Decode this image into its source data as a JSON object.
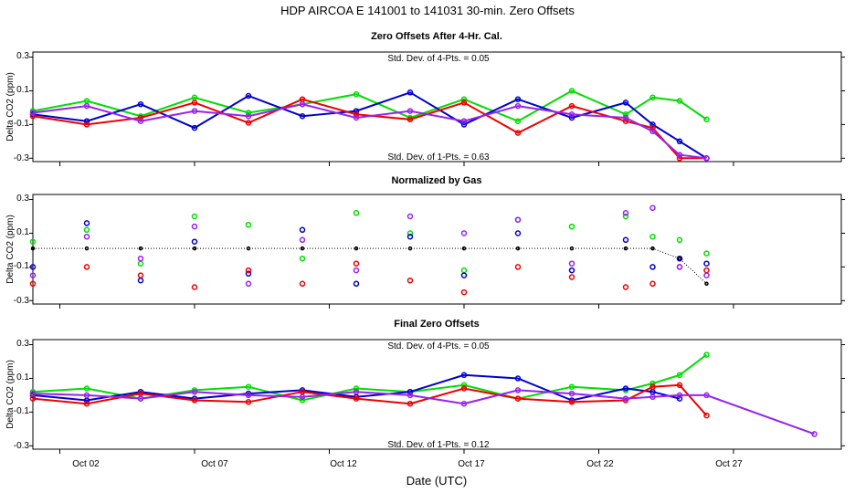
{
  "figure": {
    "title": "HDP   AIRCOA E   141001 to 141031   30-min. Zero Offsets",
    "xlabel": "Date (UTC)",
    "x_ticks": [
      "Oct 02",
      "Oct 07",
      "Oct 12",
      "Oct 17",
      "Oct 22",
      "Oct 27"
    ]
  },
  "colors": {
    "green": "#00dd00",
    "blue": "#0000cc",
    "red": "#ee0000",
    "purple": "#9922ee",
    "black": "#000000"
  },
  "chart_data": [
    {
      "type": "line",
      "title": "Zero Offsets After 4-Hr. Cal.",
      "ylabel": "Delta CO2 (ppm)",
      "yticks": [
        "0.3",
        "0.1",
        "-0.1",
        "-0.3"
      ],
      "ylim": [
        -0.32,
        0.33
      ],
      "xlim": [
        "2014-10-01",
        "2014-10-31"
      ],
      "annotations": [
        "Std. Dev. of 4-Pts. =  0.05",
        "Std. Dev. of 1-Pts. =  0.63"
      ],
      "x": [
        "2014-10-01",
        "2014-10-03",
        "2014-10-05",
        "2014-10-07",
        "2014-10-09",
        "2014-10-11",
        "2014-10-13",
        "2014-10-15",
        "2014-10-17",
        "2014-10-19",
        "2014-10-21",
        "2014-10-23",
        "2014-10-24",
        "2014-10-25",
        "2014-10-26"
      ],
      "series": [
        {
          "values": [
            -0.02,
            0.04,
            -0.05,
            0.06,
            -0.03,
            0.02,
            0.08,
            -0.06,
            0.05,
            -0.08,
            0.1,
            -0.04,
            0.06,
            0.04,
            -0.07
          ]
        },
        {
          "values": [
            -0.04,
            -0.08,
            0.02,
            -0.12,
            0.07,
            -0.05,
            -0.02,
            0.09,
            -0.1,
            0.05,
            -0.06,
            0.03,
            -0.1,
            -0.2,
            -0.3
          ]
        },
        {
          "values": [
            -0.05,
            -0.1,
            -0.06,
            0.03,
            -0.09,
            0.05,
            -0.04,
            -0.07,
            0.03,
            -0.15,
            0.01,
            -0.08,
            -0.12,
            -0.3,
            -0.3
          ]
        },
        {
          "values": [
            -0.03,
            0.01,
            -0.08,
            -0.02,
            -0.05,
            0.02,
            -0.06,
            -0.02,
            -0.08,
            0.01,
            -0.04,
            -0.06,
            -0.14,
            -0.28,
            -0.3
          ]
        }
      ]
    },
    {
      "type": "scatter",
      "title": "Normalized by Gas",
      "ylabel": "Delta CO2 (ppm)",
      "yticks": [
        "0.3",
        "0.1",
        "-0.1",
        "-0.3"
      ],
      "ylim": [
        -0.32,
        0.33
      ],
      "xlim": [
        "2014-10-01",
        "2014-10-31"
      ],
      "x": [
        "2014-10-01",
        "2014-10-03",
        "2014-10-05",
        "2014-10-07",
        "2014-10-09",
        "2014-10-11",
        "2014-10-13",
        "2014-10-15",
        "2014-10-17",
        "2014-10-19",
        "2014-10-21",
        "2014-10-23",
        "2014-10-24",
        "2014-10-25",
        "2014-10-26"
      ],
      "series": [
        {
          "values": [
            0.05,
            0.12,
            -0.08,
            0.2,
            0.15,
            -0.05,
            0.22,
            0.1,
            -0.12,
            0.18,
            0.14,
            0.2,
            0.08,
            0.06,
            -0.02
          ]
        },
        {
          "values": [
            -0.1,
            0.16,
            -0.18,
            0.05,
            -0.14,
            0.12,
            -0.2,
            0.08,
            -0.15,
            0.1,
            -0.12,
            0.06,
            -0.1,
            -0.05,
            -0.08
          ]
        },
        {
          "values": [
            -0.2,
            -0.1,
            -0.15,
            -0.22,
            -0.12,
            -0.2,
            -0.08,
            -0.18,
            -0.25,
            -0.1,
            -0.16,
            -0.22,
            -0.2,
            -0.1,
            -0.12
          ]
        },
        {
          "values": [
            -0.15,
            0.08,
            -0.05,
            0.14,
            -0.2,
            0.06,
            -0.12,
            0.2,
            0.1,
            0.18,
            -0.08,
            0.22,
            0.25,
            -0.1,
            -0.15
          ]
        },
        {
          "values": [
            0.01,
            0.01,
            0.01,
            0.01,
            0.01,
            0.01,
            0.01,
            0.01,
            0.01,
            0.01,
            0.01,
            0.01,
            0.01,
            -0.05,
            -0.2
          ]
        }
      ]
    },
    {
      "type": "line",
      "title": "Final Zero Offsets",
      "ylabel": "Delta CO2 (ppm)",
      "yticks": [
        "0.3",
        "0.1",
        "-0.1",
        "-0.3"
      ],
      "ylim": [
        -0.32,
        0.33
      ],
      "xlim": [
        "2014-10-01",
        "2014-10-31"
      ],
      "annotations": [
        "Std. Dev. of 4-Pts. =  0.05",
        "Std. Dev. of 1-Pts. =  0.12"
      ],
      "x": [
        "2014-10-01",
        "2014-10-03",
        "2014-10-05",
        "2014-10-07",
        "2014-10-09",
        "2014-10-11",
        "2014-10-13",
        "2014-10-15",
        "2014-10-17",
        "2014-10-19",
        "2014-10-21",
        "2014-10-23",
        "2014-10-24",
        "2014-10-25",
        "2014-10-26",
        "2014-10-30"
      ],
      "series": [
        {
          "values": [
            0.02,
            0.04,
            -0.02,
            0.03,
            0.05,
            -0.03,
            0.04,
            0.02,
            0.06,
            -0.02,
            0.05,
            0.03,
            0.07,
            0.12,
            0.24,
            null
          ]
        },
        {
          "values": [
            0.0,
            -0.03,
            0.02,
            -0.02,
            0.01,
            0.03,
            -0.01,
            0.02,
            0.12,
            0.1,
            -0.03,
            0.04,
            0.02,
            -0.02,
            null,
            null
          ]
        },
        {
          "values": [
            -0.02,
            -0.05,
            0.01,
            -0.03,
            -0.04,
            0.02,
            -0.02,
            -0.05,
            0.04,
            -0.02,
            -0.04,
            -0.03,
            0.05,
            0.06,
            -0.12,
            null
          ]
        },
        {
          "values": [
            0.01,
            0.0,
            -0.02,
            0.02,
            0.0,
            -0.01,
            0.02,
            0.0,
            -0.05,
            0.03,
            0.01,
            -0.02,
            -0.01,
            0.0,
            0.0,
            -0.23
          ]
        }
      ]
    }
  ]
}
